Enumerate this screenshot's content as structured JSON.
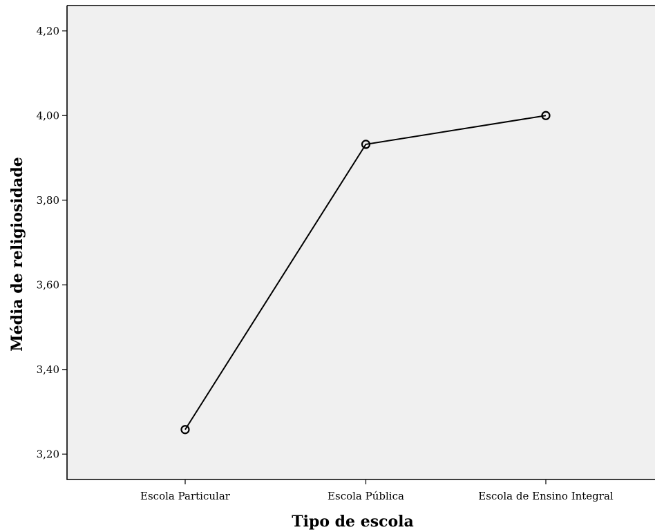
{
  "chart_data": {
    "type": "line",
    "title": "",
    "xlabel": "Tipo de escola",
    "ylabel": "Média de religiosidade",
    "categories": [
      "Escola Particular",
      "Escola Pública",
      "Escola de Ensino Integral"
    ],
    "series": [
      {
        "values": [
          3.258,
          3.932,
          4.0
        ]
      }
    ],
    "ylim": [
      3.14,
      4.26
    ],
    "yticks": [
      3.2,
      3.4,
      3.6,
      3.8,
      4.0,
      4.2
    ],
    "ytick_labels": [
      "3,20",
      "3,40",
      "3,60",
      "3,80",
      "4,00",
      "4,20"
    ],
    "grid": false,
    "legend": "none",
    "colors": {
      "plot_background": "#f0f0f0",
      "line": "#000000"
    }
  }
}
